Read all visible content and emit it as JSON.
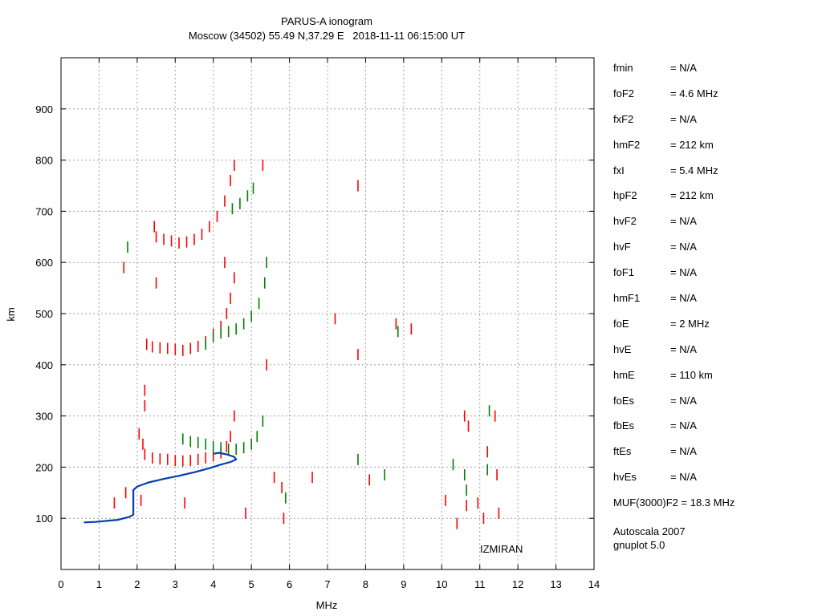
{
  "chart_data": {
    "type": "scatter",
    "title": "PARUS-A ionogram",
    "subtitle": "Moscow (34502) 55.49 N,37.29 E   2018-11-11 06:15:00 UT",
    "xlabel": "MHz",
    "ylabel": "km",
    "xlim": [
      0,
      14
    ],
    "ylim": [
      0,
      1000
    ],
    "xticks": [
      "0",
      "1",
      "2",
      "3",
      "4",
      "5",
      "6",
      "7",
      "8",
      "9",
      "10",
      "11",
      "12",
      "13",
      "14"
    ],
    "yticks": [
      "100",
      "200",
      "300",
      "400",
      "500",
      "600",
      "700",
      "800",
      "900"
    ],
    "grid": true,
    "watermark": "IZMIRAN",
    "colors": {
      "o_mode": "#ff0000",
      "x_mode": "#008000",
      "profile": "#0040b0",
      "grid": "#a0a0a0"
    },
    "series": [
      {
        "mode": "o",
        "color": "#ff0000",
        "points": [
          [
            2.2,
            225
          ],
          [
            2.4,
            218
          ],
          [
            2.6,
            216
          ],
          [
            2.8,
            215
          ],
          [
            3.0,
            213
          ],
          [
            3.2,
            212
          ],
          [
            3.4,
            213
          ],
          [
            3.6,
            215
          ],
          [
            3.8,
            218
          ],
          [
            4.0,
            222
          ],
          [
            4.2,
            228
          ],
          [
            4.35,
            240
          ],
          [
            4.45,
            260
          ],
          [
            4.55,
            300
          ],
          [
            2.05,
            265
          ],
          [
            2.15,
            245
          ],
          [
            2.25,
            440
          ],
          [
            2.4,
            435
          ],
          [
            2.6,
            433
          ],
          [
            2.8,
            432
          ],
          [
            3.0,
            430
          ],
          [
            3.2,
            428
          ],
          [
            3.4,
            432
          ],
          [
            3.6,
            436
          ],
          [
            3.8,
            445
          ],
          [
            4.0,
            460
          ],
          [
            4.2,
            475
          ],
          [
            4.35,
            500
          ],
          [
            4.45,
            530
          ],
          [
            4.55,
            570
          ],
          [
            2.5,
            650
          ],
          [
            2.7,
            645
          ],
          [
            2.9,
            642
          ],
          [
            3.1,
            638
          ],
          [
            3.3,
            640
          ],
          [
            3.5,
            645
          ],
          [
            3.7,
            655
          ],
          [
            3.9,
            670
          ],
          [
            4.1,
            690
          ],
          [
            4.3,
            720
          ],
          [
            4.45,
            760
          ],
          [
            4.55,
            790
          ],
          [
            1.4,
            130
          ],
          [
            1.7,
            150
          ],
          [
            2.1,
            135
          ],
          [
            2.2,
            350
          ],
          [
            2.2,
            320
          ],
          [
            1.65,
            590
          ],
          [
            2.45,
            670
          ],
          [
            2.5,
            560
          ],
          [
            4.3,
            600
          ],
          [
            3.25,
            130
          ],
          [
            4.85,
            110
          ],
          [
            5.4,
            400
          ],
          [
            5.6,
            180
          ],
          [
            5.8,
            160
          ],
          [
            5.85,
            100
          ],
          [
            6.6,
            180
          ],
          [
            7.2,
            490
          ],
          [
            7.8,
            420
          ],
          [
            7.8,
            750
          ],
          [
            8.1,
            175
          ],
          [
            8.8,
            480
          ],
          [
            9.2,
            470
          ],
          [
            5.3,
            790
          ],
          [
            10.1,
            135
          ],
          [
            10.4,
            90
          ],
          [
            10.6,
            300
          ],
          [
            10.7,
            280
          ],
          [
            10.65,
            125
          ],
          [
            10.95,
            130
          ],
          [
            11.1,
            100
          ],
          [
            11.2,
            230
          ],
          [
            11.4,
            300
          ],
          [
            11.45,
            185
          ],
          [
            11.5,
            110
          ]
        ]
      },
      {
        "mode": "x",
        "color": "#008000",
        "points": [
          [
            3.2,
            255
          ],
          [
            3.4,
            250
          ],
          [
            3.6,
            248
          ],
          [
            3.8,
            245
          ],
          [
            4.0,
            240
          ],
          [
            4.2,
            238
          ],
          [
            4.4,
            235
          ],
          [
            4.6,
            235
          ],
          [
            4.8,
            238
          ],
          [
            5.0,
            245
          ],
          [
            5.15,
            260
          ],
          [
            5.3,
            290
          ],
          [
            3.8,
            440
          ],
          [
            4.0,
            455
          ],
          [
            4.2,
            462
          ],
          [
            4.4,
            465
          ],
          [
            4.6,
            470
          ],
          [
            4.8,
            480
          ],
          [
            5.0,
            495
          ],
          [
            5.2,
            520
          ],
          [
            5.35,
            560
          ],
          [
            5.4,
            600
          ],
          [
            4.5,
            705
          ],
          [
            4.7,
            715
          ],
          [
            4.9,
            730
          ],
          [
            5.05,
            745
          ],
          [
            1.75,
            630
          ],
          [
            5.9,
            140
          ],
          [
            7.8,
            215
          ],
          [
            8.5,
            185
          ],
          [
            8.85,
            465
          ],
          [
            10.3,
            205
          ],
          [
            10.6,
            185
          ],
          [
            10.65,
            155
          ],
          [
            11.2,
            195
          ],
          [
            11.25,
            310
          ]
        ]
      }
    ],
    "virtual_height_profile": {
      "name": "",
      "points": [
        [
          0.6,
          92
        ],
        [
          0.9,
          93
        ],
        [
          1.2,
          95
        ],
        [
          1.5,
          97
        ],
        [
          1.8,
          103
        ],
        [
          1.9,
          107
        ],
        [
          1.9,
          110
        ],
        [
          1.9,
          125
        ],
        [
          1.9,
          140
        ],
        [
          1.9,
          155
        ],
        [
          2.0,
          162
        ],
        [
          2.3,
          170
        ],
        [
          2.7,
          177
        ],
        [
          3.1,
          183
        ],
        [
          3.5,
          190
        ],
        [
          3.9,
          198
        ],
        [
          4.2,
          205
        ],
        [
          4.45,
          210
        ],
        [
          4.6,
          215
        ],
        [
          4.55,
          220
        ],
        [
          4.35,
          225
        ],
        [
          4.15,
          228
        ],
        [
          4.0,
          226
        ]
      ]
    }
  },
  "side_panel": {
    "rows": [
      {
        "key": "fmin",
        "value": "= N/A"
      },
      {
        "key": "foF2",
        "value": "= 4.6 MHz"
      },
      {
        "key": "fxF2",
        "value": "= N/A"
      },
      {
        "key": "hmF2",
        "value": "= 212 km"
      },
      {
        "key": "fxI",
        "value": "= 5.4 MHz"
      },
      {
        "key": "hpF2",
        "value": "= 212 km"
      },
      {
        "key": "hvF2",
        "value": "= N/A"
      },
      {
        "key": "hvF",
        "value": "= N/A"
      },
      {
        "key": "foF1",
        "value": "= N/A"
      },
      {
        "key": "hmF1",
        "value": "= N/A"
      },
      {
        "key": "foE",
        "value": "= 2 MHz"
      },
      {
        "key": "hvE",
        "value": "= N/A"
      },
      {
        "key": "hmE",
        "value": "= 110 km"
      },
      {
        "key": "foEs",
        "value": "= N/A"
      },
      {
        "key": "fbEs",
        "value": "= N/A"
      },
      {
        "key": "ftEs",
        "value": "= N/A"
      },
      {
        "key": "hvEs",
        "value": "= N/A"
      }
    ],
    "muf": "MUF(3000)F2 = 18.3 MHz",
    "footer_line1": "Autoscala 2007",
    "footer_line2": "gnuplot 5.0"
  }
}
